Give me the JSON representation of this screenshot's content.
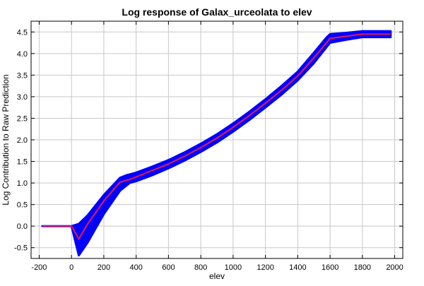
{
  "chart_data": {
    "type": "line",
    "title": "Log response of Galax_urceolata to elev",
    "xlabel": "elev",
    "ylabel": "Log Contribution to Raw Prediction",
    "xlim": [
      -250,
      2050
    ],
    "ylim": [
      -0.75,
      4.75
    ],
    "xticks": [
      -200,
      0,
      200,
      400,
      600,
      800,
      1000,
      1200,
      1400,
      1600,
      1800,
      2000
    ],
    "yticks": [
      -0.5,
      0.0,
      0.5,
      1.0,
      1.5,
      2.0,
      2.5,
      3.0,
      3.5,
      4.0,
      4.5
    ],
    "xtick_labels": [
      "-200",
      "0",
      "200",
      "400",
      "600",
      "800",
      "1000",
      "1200",
      "1400",
      "1600",
      "1800",
      "2000"
    ],
    "ytick_labels": [
      "-0.5",
      "0.0",
      "0.5",
      "1.0",
      "1.5",
      "2.0",
      "2.5",
      "3.0",
      "3.5",
      "4.0",
      "4.5"
    ],
    "grid": true,
    "series": [
      {
        "role": "mean",
        "color": "#d6185e",
        "x": [
          -180,
          0,
          45,
          100,
          200,
          300,
          360,
          400,
          500,
          600,
          700,
          800,
          900,
          1000,
          1100,
          1200,
          1300,
          1400,
          1500,
          1600,
          1700,
          1800,
          1975
        ],
        "y": [
          0.0,
          0.0,
          -0.3,
          0.05,
          0.58,
          1.02,
          1.08,
          1.14,
          1.29,
          1.44,
          1.62,
          1.82,
          2.04,
          2.29,
          2.56,
          2.85,
          3.15,
          3.48,
          3.9,
          4.35,
          4.4,
          4.45,
          4.45
        ]
      },
      {
        "role": "upper",
        "color": "#0000ff",
        "x": [
          -180,
          0,
          45,
          100,
          200,
          300,
          340,
          360,
          400,
          500,
          600,
          700,
          800,
          900,
          1000,
          1100,
          1200,
          1300,
          1400,
          1500,
          1580,
          1600,
          1700,
          1800,
          1975
        ],
        "y": [
          0.0,
          0.0,
          0.05,
          0.25,
          0.72,
          1.12,
          1.18,
          1.2,
          1.24,
          1.38,
          1.53,
          1.71,
          1.91,
          2.13,
          2.38,
          2.65,
          2.94,
          3.25,
          3.58,
          4.02,
          4.38,
          4.45,
          4.48,
          4.52,
          4.52
        ]
      },
      {
        "role": "lower",
        "color": "#0000ff",
        "x": [
          -180,
          0,
          45,
          100,
          200,
          300,
          360,
          400,
          500,
          600,
          700,
          800,
          900,
          1000,
          1100,
          1200,
          1300,
          1400,
          1500,
          1600,
          1700,
          1800,
          1975
        ],
        "y": [
          0.0,
          0.0,
          -0.68,
          -0.38,
          0.28,
          0.82,
          1.0,
          1.04,
          1.18,
          1.34,
          1.52,
          1.72,
          1.94,
          2.19,
          2.46,
          2.75,
          3.05,
          3.38,
          3.78,
          4.25,
          4.32,
          4.38,
          4.38
        ]
      }
    ]
  }
}
